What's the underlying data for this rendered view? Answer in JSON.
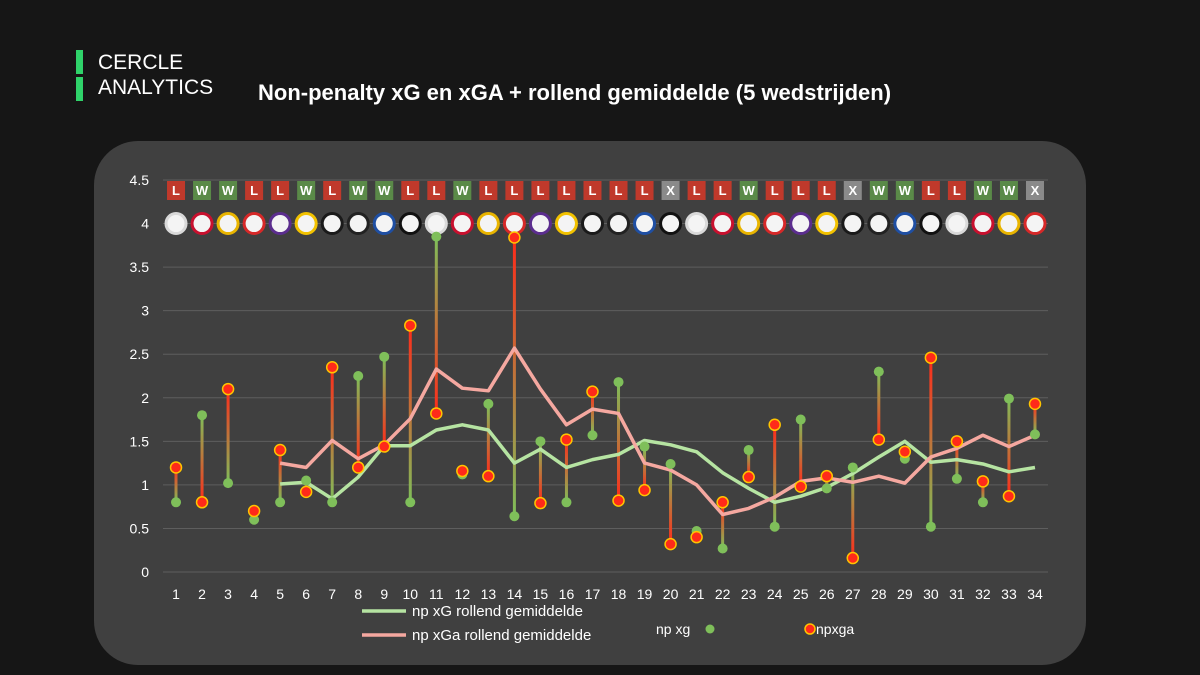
{
  "brand": {
    "line1": "CERCLE",
    "line2": "ANALYTICS",
    "accent": "#2fd36a"
  },
  "title": "Non-penalty xG en xGA + rollend gemiddelde (5 wedstrijden)",
  "colors": {
    "xg": "#7fbf5a",
    "xga": "#ff2a1a",
    "xg_avg": "#b6e4a2",
    "xga_avg": "#f5a8a0",
    "win": "#5a8a48",
    "loss": "#c0392b",
    "draw": "#8a8a8a"
  },
  "chart_data": {
    "type": "line",
    "ylim": [
      0,
      4.5
    ],
    "y_ticks": [
      "0",
      "0.5",
      "1",
      "1.5",
      "2",
      "2.5",
      "3",
      "3.5",
      "4",
      "4.5"
    ],
    "x": [
      "1",
      "2",
      "3",
      "4",
      "5",
      "6",
      "7",
      "8",
      "9",
      "10",
      "11",
      "12",
      "13",
      "14",
      "15",
      "16",
      "17",
      "18",
      "19",
      "20",
      "21",
      "22",
      "23",
      "24",
      "25",
      "26",
      "27",
      "28",
      "29",
      "30",
      "31",
      "32",
      "33",
      "34"
    ],
    "results": [
      "L",
      "W",
      "W",
      "L",
      "L",
      "W",
      "L",
      "W",
      "W",
      "L",
      "L",
      "W",
      "L",
      "L",
      "L",
      "L",
      "L",
      "L",
      "L",
      "X",
      "L",
      "L",
      "W",
      "L",
      "L",
      "L",
      "X",
      "W",
      "W",
      "L",
      "L",
      "W",
      "W",
      "X"
    ],
    "series": [
      {
        "name": "np xg",
        "values": [
          0.8,
          1.8,
          1.02,
          0.6,
          0.8,
          1.05,
          0.8,
          2.25,
          2.47,
          0.8,
          3.85,
          1.12,
          1.93,
          0.64,
          1.5,
          0.8,
          1.57,
          2.18,
          1.44,
          1.24,
          0.47,
          0.27,
          1.4,
          0.52,
          1.75,
          0.96,
          1.2,
          2.3,
          1.3,
          0.52,
          1.07,
          0.8,
          1.99,
          1.58
        ]
      },
      {
        "name": "npxga",
        "values": [
          1.2,
          0.8,
          2.1,
          0.7,
          1.4,
          0.92,
          2.35,
          1.2,
          1.44,
          2.83,
          1.82,
          1.16,
          1.1,
          3.84,
          0.79,
          1.52,
          2.07,
          0.82,
          0.94,
          0.32,
          0.4,
          0.8,
          1.09,
          1.69,
          0.98,
          1.1,
          0.16,
          1.52,
          1.38,
          2.46,
          1.5,
          1.04,
          0.87,
          1.93
        ]
      },
      {
        "name": "np xG rollend gemiddelde",
        "values": [
          null,
          null,
          null,
          null,
          1.01,
          1.03,
          0.84,
          1.09,
          1.45,
          1.45,
          1.63,
          1.69,
          1.63,
          1.25,
          1.41,
          1.2,
          1.29,
          1.35,
          1.51,
          1.46,
          1.38,
          1.14,
          0.96,
          0.8,
          0.87,
          0.97,
          1.13,
          1.32,
          1.5,
          1.26,
          1.29,
          1.24,
          1.15,
          1.2
        ]
      },
      {
        "name": "np xGa rollend gemiddelde",
        "values": [
          null,
          null,
          null,
          null,
          1.25,
          1.2,
          1.51,
          1.3,
          1.46,
          1.76,
          2.33,
          2.11,
          2.08,
          2.57,
          2.1,
          1.69,
          1.87,
          1.82,
          1.25,
          1.17,
          1.0,
          0.66,
          0.73,
          0.86,
          1.04,
          1.08,
          1.03,
          1.1,
          1.02,
          1.32,
          1.42,
          1.57,
          1.44,
          1.57
        ]
      }
    ],
    "legend": {
      "xg_avg_label": "np xG rollend gemiddelde",
      "xga_avg_label": "np xGa rollend gemiddelde",
      "xg_label": "np xg",
      "xga_label": "npxga"
    }
  }
}
